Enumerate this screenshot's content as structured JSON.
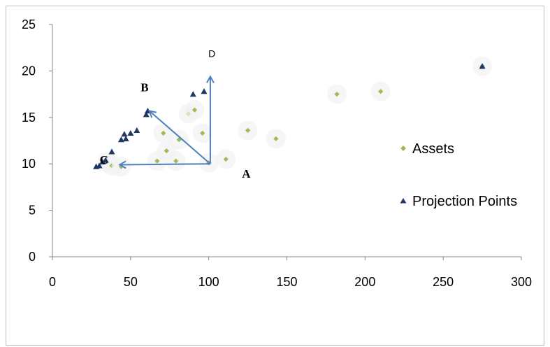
{
  "chart_data": {
    "type": "scatter",
    "xlim": [
      0,
      300
    ],
    "ylim": [
      0,
      25
    ],
    "x_ticks": [
      0,
      50,
      100,
      150,
      200,
      250,
      300
    ],
    "y_ticks": [
      0,
      5,
      10,
      15,
      20,
      25
    ],
    "grid": false,
    "legend_position": "right",
    "series": [
      {
        "name": "Assets",
        "color": "#9bbb59",
        "marker": "diamond",
        "points": [
          [
            35,
            10.2
          ],
          [
            38,
            9.8
          ],
          [
            44,
            9.7
          ],
          [
            67,
            10.3
          ],
          [
            71,
            13.3
          ],
          [
            73,
            11.4
          ],
          [
            79,
            10.3
          ],
          [
            81,
            12.6
          ],
          [
            87,
            15.4
          ],
          [
            91,
            15.8
          ],
          [
            96,
            13.3
          ],
          [
            100,
            10.1
          ],
          [
            111,
            10.5
          ],
          [
            125,
            13.6
          ],
          [
            143,
            12.7
          ],
          [
            182,
            17.5
          ],
          [
            210,
            17.8
          ],
          [
            275,
            20.5
          ]
        ]
      },
      {
        "name": "Projection Points",
        "color": "#1f3864",
        "marker": "triangle",
        "points": [
          [
            28,
            9.7
          ],
          [
            30,
            9.8
          ],
          [
            32,
            10.2
          ],
          [
            34,
            10.4
          ],
          [
            38,
            11.3
          ],
          [
            44,
            12.6
          ],
          [
            46,
            13.2
          ],
          [
            47,
            12.7
          ],
          [
            50,
            13.3
          ],
          [
            54,
            13.6
          ],
          [
            60,
            15.3
          ],
          [
            61,
            15.7
          ],
          [
            90,
            17.5
          ],
          [
            97,
            17.8
          ],
          [
            275,
            20.5
          ]
        ]
      }
    ],
    "vectors": {
      "color": "#4f81bd",
      "origin": [
        101,
        10.0
      ],
      "targets": [
        {
          "label": "B",
          "point": [
            62,
            15.7
          ]
        },
        {
          "label": "C",
          "point": [
            43,
            9.9
          ]
        },
        {
          "label": "D",
          "point": [
            101,
            19.4
          ]
        }
      ]
    },
    "annotations": [
      {
        "text": "A",
        "at": [
          124,
          8.5
        ],
        "style": "serif"
      },
      {
        "text": "B",
        "at": [
          59,
          17.8
        ],
        "style": "serif"
      },
      {
        "text": "C",
        "at": [
          33,
          10.0
        ],
        "style": "serif"
      },
      {
        "text": "D",
        "at": [
          102,
          21.5
        ],
        "style": "sans"
      }
    ]
  }
}
